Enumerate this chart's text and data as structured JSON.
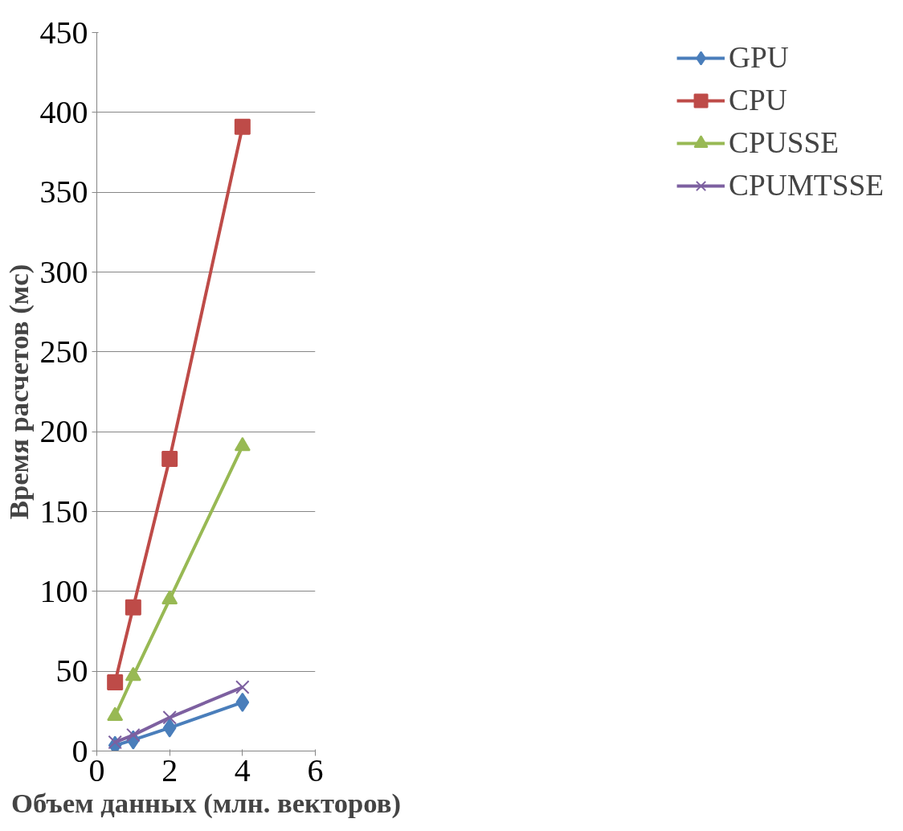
{
  "chart_data": {
    "type": "line",
    "xlabel": "Объем данных (млн. векторов)",
    "ylabel": "Время расчетов (мс)",
    "x": [
      0.5,
      1,
      2,
      4
    ],
    "series": [
      {
        "name": "GPU",
        "color": "#4a7ebb",
        "marker": "diamond",
        "values": [
          3.5,
          7,
          14.5,
          30.5
        ]
      },
      {
        "name": "CPU",
        "color": "#be4b48",
        "marker": "square",
        "values": [
          43,
          90,
          183,
          391
        ]
      },
      {
        "name": "CPUSSE",
        "color": "#98b954",
        "marker": "triangle",
        "values": [
          22,
          47,
          95,
          191
        ]
      },
      {
        "name": "CPUMTSSE",
        "color": "#7d60a0",
        "marker": "cross",
        "values": [
          5.5,
          10,
          21,
          40
        ]
      }
    ],
    "xlim": [
      0,
      6
    ],
    "xticks": [
      0,
      2,
      4,
      6
    ],
    "ylim": [
      0,
      450
    ],
    "yticks": [
      0,
      50,
      100,
      150,
      200,
      250,
      300,
      350,
      400,
      450
    ],
    "grid": "y",
    "legend": "right",
    "line_style": "solid"
  }
}
